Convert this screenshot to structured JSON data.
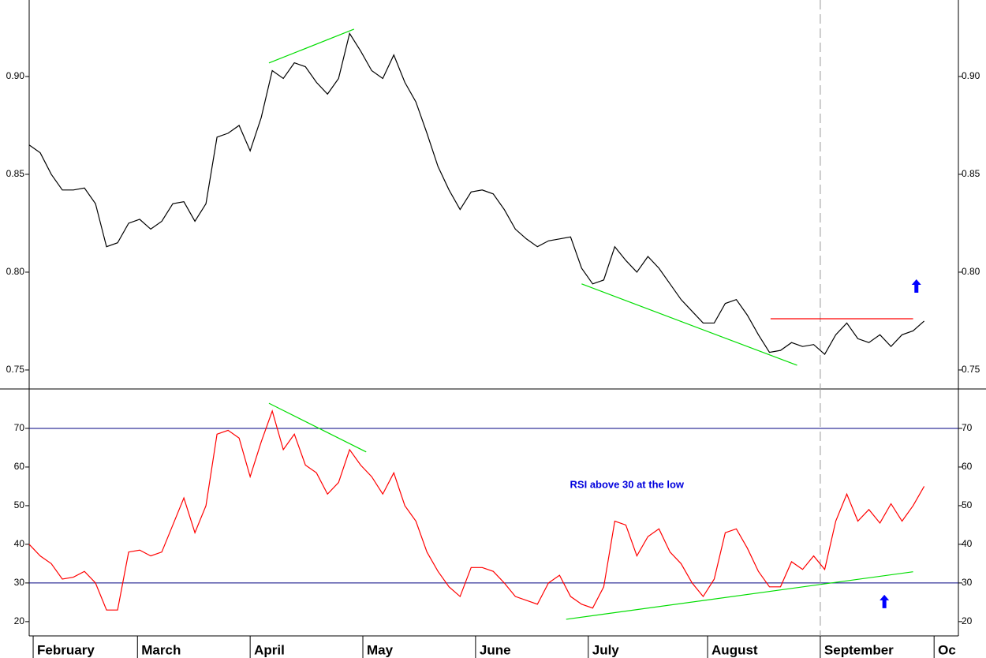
{
  "chart_data": [
    {
      "type": "line",
      "color": "#000000",
      "values": [
        0.865,
        0.861,
        0.85,
        0.842,
        0.842,
        0.843,
        0.835,
        0.813,
        0.815,
        0.825,
        0.827,
        0.822,
        0.826,
        0.835,
        0.836,
        0.826,
        0.835,
        0.869,
        0.871,
        0.875,
        0.862,
        0.879,
        0.903,
        0.899,
        0.907,
        0.905,
        0.897,
        0.891,
        0.899,
        0.922,
        0.913,
        0.903,
        0.899,
        0.911,
        0.897,
        0.887,
        0.871,
        0.854,
        0.842,
        0.832,
        0.841,
        0.842,
        0.84,
        0.832,
        0.822,
        0.817,
        0.813,
        0.816,
        0.817,
        0.818,
        0.802,
        0.794,
        0.796,
        0.813,
        0.806,
        0.8,
        0.808,
        0.802,
        0.794,
        0.786,
        0.78,
        0.774,
        0.774,
        0.784,
        0.786,
        0.778,
        0.768,
        0.759,
        0.76,
        0.764,
        0.762,
        0.763,
        0.758,
        0.768,
        0.774,
        0.766,
        0.764,
        0.768,
        0.762,
        0.768,
        0.77,
        0.775
      ],
      "xlim": [
        0,
        84.1
      ],
      "ylim": [
        0.7403,
        0.9391
      ],
      "yticks": [
        {
          "value": 0.75,
          "label": "0.75"
        },
        {
          "value": 0.8,
          "label": "0.80"
        },
        0.85,
        {
          "value": 0.9,
          "label": "0.90"
        }
      ],
      "lines": [
        {
          "color": "#00dd00",
          "x": [
            21.7,
            29.4
          ],
          "y": [
            0.9069,
            0.9242
          ]
        },
        {
          "color": "#00dd00",
          "x": [
            50,
            69.5
          ],
          "y": [
            0.794,
            0.7524
          ]
        },
        {
          "color": "#ff0000",
          "x": [
            67.1,
            80
          ],
          "y": [
            0.7762,
            0.7762
          ]
        }
      ],
      "vlines": [
        71.6
      ],
      "arrows": [
        {
          "color": "#0000ff",
          "x": 80.3,
          "y": 0.7927
        }
      ]
    },
    {
      "type": "line",
      "color": "#ff0000",
      "values": [
        40,
        37,
        35,
        31,
        31.5,
        33,
        30,
        23,
        23,
        38,
        38.5,
        37,
        38,
        45,
        52,
        43,
        50,
        68.5,
        69.5,
        67.5,
        57.5,
        66.5,
        74.5,
        64.5,
        68.5,
        60.5,
        58.5,
        53,
        56,
        64.5,
        60.5,
        57.5,
        53,
        58.5,
        50,
        46,
        38,
        33,
        29,
        26.5,
        34,
        34,
        33,
        30,
        26.5,
        25.5,
        24.5,
        30,
        32,
        26.5,
        24.5,
        23.5,
        29,
        46,
        45,
        37,
        42,
        44,
        38,
        35,
        30,
        26.5,
        31,
        43,
        44,
        39,
        33,
        29,
        29,
        35.5,
        33.5,
        37,
        33.5,
        46,
        53,
        46,
        49,
        45.5,
        50.5,
        46,
        50,
        55
      ],
      "xlim": [
        0,
        84.1
      ],
      "ylim": [
        16.3,
        80.2
      ],
      "yticks": [
        20,
        30,
        40,
        50,
        60,
        70
      ],
      "hlines": [
        70,
        30
      ],
      "hline_color": "#000080",
      "lines": [
        {
          "color": "#00dd00",
          "x": [
            21.7,
            30.5
          ],
          "y": [
            76.5,
            63.9
          ]
        },
        {
          "color": "#00dd00",
          "x": [
            48.6,
            80
          ],
          "y": [
            20.6,
            32.9
          ]
        }
      ],
      "vlines": [
        71.6
      ],
      "arrows": [
        {
          "color": "#0000ff",
          "x": 77.4,
          "y": 25.1
        }
      ],
      "annotations": [
        {
          "text": "RSI above 30 at the low",
          "color": "#0000dd",
          "x": 54.1,
          "y": 55.3
        }
      ],
      "xticks": [
        {
          "value": 0.36,
          "label": "February"
        },
        {
          "value": 9.8,
          "label": "March"
        },
        {
          "value": 20,
          "label": "April"
        },
        {
          "value": 30.2,
          "label": "May"
        },
        {
          "value": 40.4,
          "label": "June"
        },
        {
          "value": 50.6,
          "label": "July"
        },
        {
          "value": 61.4,
          "label": "August"
        },
        {
          "value": 71.6,
          "label": "September"
        },
        {
          "value": 81.9,
          "label": "Oc"
        }
      ]
    }
  ]
}
